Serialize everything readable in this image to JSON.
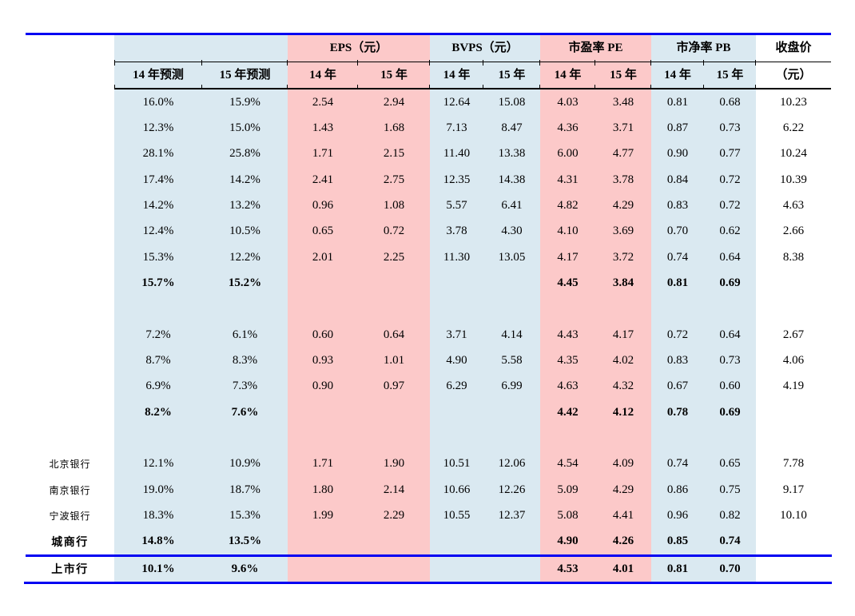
{
  "colors": {
    "band_blue": "#dae9f1",
    "band_pink": "#fcc9c9",
    "rule_blue": "#0101f2",
    "line_black": "#000000",
    "background": "#ffffff"
  },
  "table": {
    "groups": [
      {
        "label": ""
      },
      {
        "label": "EPS（元）"
      },
      {
        "label": "BVPS（元）"
      },
      {
        "label": "市盈率 PE"
      },
      {
        "label": "市净率 PB"
      },
      {
        "label": "收盘价"
      }
    ],
    "subheaders": [
      "14 年预测",
      "15 年预测",
      "14 年",
      "15 年",
      "14 年",
      "15 年",
      "14 年",
      "15 年",
      "14 年",
      "15 年",
      "（元）"
    ],
    "rows": [
      {
        "label": "",
        "bold": false,
        "blank": false,
        "cells": [
          "16.0%",
          "15.9%",
          "2.54",
          "2.94",
          "12.64",
          "15.08",
          "4.03",
          "3.48",
          "0.81",
          "0.68",
          "10.23"
        ]
      },
      {
        "label": "",
        "bold": false,
        "blank": false,
        "cells": [
          "12.3%",
          "15.0%",
          "1.43",
          "1.68",
          "7.13",
          "8.47",
          "4.36",
          "3.71",
          "0.87",
          "0.73",
          "6.22"
        ]
      },
      {
        "label": "",
        "bold": false,
        "blank": false,
        "cells": [
          "28.1%",
          "25.8%",
          "1.71",
          "2.15",
          "11.40",
          "13.38",
          "6.00",
          "4.77",
          "0.90",
          "0.77",
          "10.24"
        ]
      },
      {
        "label": "",
        "bold": false,
        "blank": false,
        "cells": [
          "17.4%",
          "14.2%",
          "2.41",
          "2.75",
          "12.35",
          "14.38",
          "4.31",
          "3.78",
          "0.84",
          "0.72",
          "10.39"
        ]
      },
      {
        "label": "",
        "bold": false,
        "blank": false,
        "cells": [
          "14.2%",
          "13.2%",
          "0.96",
          "1.08",
          "5.57",
          "6.41",
          "4.82",
          "4.29",
          "0.83",
          "0.72",
          "4.63"
        ]
      },
      {
        "label": "",
        "bold": false,
        "blank": false,
        "cells": [
          "12.4%",
          "10.5%",
          "0.65",
          "0.72",
          "3.78",
          "4.30",
          "4.10",
          "3.69",
          "0.70",
          "0.62",
          "2.66"
        ]
      },
      {
        "label": "",
        "bold": false,
        "blank": false,
        "cells": [
          "15.3%",
          "12.2%",
          "2.01",
          "2.25",
          "11.30",
          "13.05",
          "4.17",
          "3.72",
          "0.74",
          "0.64",
          "8.38"
        ]
      },
      {
        "label": "",
        "bold": true,
        "blank": false,
        "cells": [
          "15.7%",
          "15.2%",
          "",
          "",
          "",
          "",
          "4.45",
          "3.84",
          "0.81",
          "0.69",
          ""
        ]
      },
      {
        "label": "",
        "bold": false,
        "blank": true,
        "cells": [
          "",
          "",
          "",
          "",
          "",
          "",
          "",
          "",
          "",
          "",
          ""
        ]
      },
      {
        "label": "",
        "bold": false,
        "blank": false,
        "cells": [
          "7.2%",
          "6.1%",
          "0.60",
          "0.64",
          "3.71",
          "4.14",
          "4.43",
          "4.17",
          "0.72",
          "0.64",
          "2.67"
        ]
      },
      {
        "label": "",
        "bold": false,
        "blank": false,
        "cells": [
          "8.7%",
          "8.3%",
          "0.93",
          "1.01",
          "4.90",
          "5.58",
          "4.35",
          "4.02",
          "0.83",
          "0.73",
          "4.06"
        ]
      },
      {
        "label": "",
        "bold": false,
        "blank": false,
        "cells": [
          "6.9%",
          "7.3%",
          "0.90",
          "0.97",
          "6.29",
          "6.99",
          "4.63",
          "4.32",
          "0.67",
          "0.60",
          "4.19"
        ]
      },
      {
        "label": "",
        "bold": true,
        "blank": false,
        "cells": [
          "8.2%",
          "7.6%",
          "",
          "",
          "",
          "",
          "4.42",
          "4.12",
          "0.78",
          "0.69",
          ""
        ]
      },
      {
        "label": "",
        "bold": false,
        "blank": true,
        "cells": [
          "",
          "",
          "",
          "",
          "",
          "",
          "",
          "",
          "",
          "",
          ""
        ]
      },
      {
        "label": "北京银行",
        "bold": false,
        "blank": false,
        "cells": [
          "12.1%",
          "10.9%",
          "1.71",
          "1.90",
          "10.51",
          "12.06",
          "4.54",
          "4.09",
          "0.74",
          "0.65",
          "7.78"
        ]
      },
      {
        "label": "南京银行",
        "bold": false,
        "blank": false,
        "cells": [
          "19.0%",
          "18.7%",
          "1.80",
          "2.14",
          "10.66",
          "12.26",
          "5.09",
          "4.29",
          "0.86",
          "0.75",
          "9.17"
        ]
      },
      {
        "label": "宁波银行",
        "bold": false,
        "blank": false,
        "cells": [
          "18.3%",
          "15.3%",
          "1.99",
          "2.29",
          "10.55",
          "12.37",
          "5.08",
          "4.41",
          "0.96",
          "0.82",
          "10.10"
        ]
      },
      {
        "label": "城商行",
        "bold": true,
        "blank": false,
        "cells": [
          "14.8%",
          "13.5%",
          "",
          "",
          "",
          "",
          "4.90",
          "4.26",
          "0.85",
          "0.74",
          ""
        ]
      },
      {
        "label": "上市行",
        "bold": true,
        "blank": false,
        "last": true,
        "cells": [
          "10.1%",
          "9.6%",
          "",
          "",
          "",
          "",
          "4.53",
          "4.01",
          "0.81",
          "0.70",
          ""
        ]
      }
    ]
  }
}
